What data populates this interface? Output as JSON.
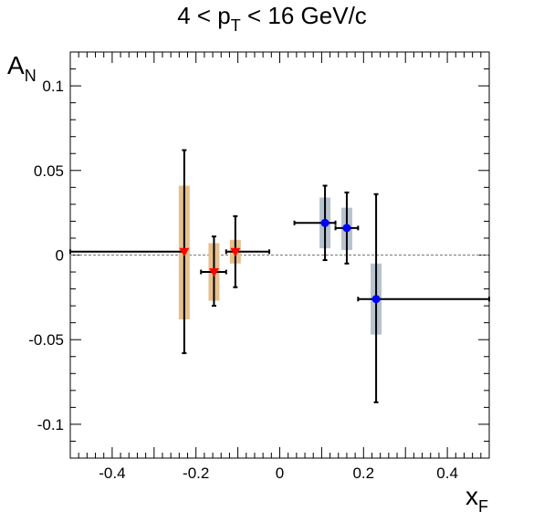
{
  "title": {
    "before": "4 < p",
    "sub": "T",
    "after": " < 16 GeV/c"
  },
  "chart_data": {
    "type": "scatter",
    "xlabel": {
      "main": "x",
      "sub": "F"
    },
    "ylabel": {
      "main": "A",
      "sub": "N"
    },
    "xlim": [
      -0.5,
      0.5
    ],
    "ylim": [
      -0.12,
      0.12
    ],
    "x_ticks": [
      "-0.4",
      "-0.2",
      "0",
      "0.2",
      "0.4"
    ],
    "x_tick_values": [
      -0.4,
      -0.2,
      0,
      0.2,
      0.4
    ],
    "y_ticks": [
      "-0.1",
      "-0.05",
      "0",
      "0.05",
      "0.1"
    ],
    "y_tick_values": [
      -0.1,
      -0.05,
      0,
      0.05,
      0.1
    ],
    "reference_line_y": 0,
    "series": [
      {
        "marker": "triangle-down",
        "color": "#ff0000",
        "syst_color": "#e7c08e",
        "points": [
          {
            "x": -0.228,
            "y": 0.002,
            "x_low": -0.5,
            "x_high": -0.228,
            "y_low": -0.058,
            "y_high": 0.062,
            "syst_low": -0.038,
            "syst_high": 0.041
          },
          {
            "x": -0.157,
            "y": -0.01,
            "x_low": -0.188,
            "x_high": -0.128,
            "y_low": -0.03,
            "y_high": 0.011,
            "syst_low": -0.027,
            "syst_high": 0.007
          },
          {
            "x": -0.106,
            "y": 0.002,
            "x_low": -0.128,
            "x_high": -0.025,
            "y_low": -0.019,
            "y_high": 0.023,
            "syst_low": -0.005,
            "syst_high": 0.009
          }
        ]
      },
      {
        "marker": "circle",
        "color": "#0000ff",
        "syst_color": "#b7c2cf",
        "points": [
          {
            "x": 0.108,
            "y": 0.019,
            "x_low": 0.035,
            "x_high": 0.133,
            "y_low": -0.003,
            "y_high": 0.041,
            "syst_low": 0.004,
            "syst_high": 0.034
          },
          {
            "x": 0.16,
            "y": 0.016,
            "x_low": 0.133,
            "x_high": 0.187,
            "y_low": -0.005,
            "y_high": 0.037,
            "syst_low": 0.003,
            "syst_high": 0.028
          },
          {
            "x": 0.23,
            "y": -0.026,
            "x_low": 0.187,
            "x_high": 0.5,
            "y_low": -0.087,
            "y_high": 0.036,
            "syst_low": -0.047,
            "syst_high": -0.005
          }
        ]
      }
    ]
  }
}
